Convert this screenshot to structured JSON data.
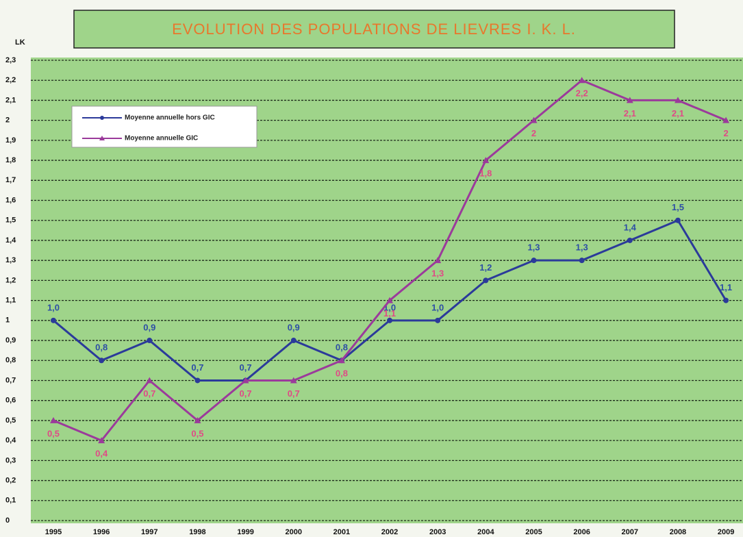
{
  "chart_data": {
    "type": "line",
    "title": "EVOLUTION DES POPULATIONS DE LIEVRES I. K. L.",
    "y_label": "LK",
    "categories": [
      "1995",
      "1996",
      "1997",
      "1998",
      "1999",
      "2000",
      "2001",
      "2002",
      "2003",
      "2004",
      "2005",
      "2006",
      "2007",
      "2008",
      "2009"
    ],
    "series": [
      {
        "name": "Moyenne annuelle hors GIC",
        "color": "#2b3a9a",
        "values": [
          1.0,
          0.8,
          0.9,
          0.7,
          0.7,
          0.9,
          0.8,
          1.0,
          1.0,
          1.2,
          1.3,
          1.3,
          1.4,
          1.5,
          1.1
        ],
        "value_labels": [
          "1,0",
          "0,8",
          "0,9",
          "0,7",
          "0,7",
          "0,9",
          "0,8",
          "1,0",
          "1,0",
          "1,2",
          "1,3",
          "1,3",
          "1,4",
          "1,5",
          "1,1"
        ]
      },
      {
        "name": "Moyenne annuelle  GIC",
        "color": "#9b3a9b",
        "values": [
          0.5,
          0.4,
          0.7,
          0.5,
          0.7,
          0.7,
          0.8,
          1.1,
          1.3,
          1.8,
          2.0,
          2.2,
          2.1,
          2.1,
          2.0
        ],
        "value_labels": [
          "0,5",
          "0,4",
          "0,7",
          "0,5",
          "0,7",
          "0,7",
          "0,8",
          "1,1",
          "1,3",
          "1,8",
          "2",
          "2,2",
          "2,1",
          "2,1",
          "2"
        ]
      }
    ],
    "ylim": [
      0,
      2.3
    ],
    "yticks": [
      0,
      {
        "value": 0.1,
        "label": "0,1"
      },
      {
        "value": 0.2,
        "label": "0,2"
      },
      {
        "value": 0.3,
        "label": "0,3"
      },
      {
        "value": 0.4,
        "label": "0,4"
      },
      {
        "value": 0.5,
        "label": "0,5"
      },
      {
        "value": 0.6,
        "label": "0,6"
      },
      {
        "value": 0.7,
        "label": "0,7"
      },
      {
        "value": 0.8,
        "label": "0,8"
      },
      {
        "value": 0.9,
        "label": "0,9"
      },
      1,
      {
        "value": 1.1,
        "label": "1,1"
      },
      {
        "value": 1.2,
        "label": "1,2"
      },
      {
        "value": 1.3,
        "label": "1,3"
      },
      {
        "value": 1.4,
        "label": "1,4"
      },
      {
        "value": 1.5,
        "label": "1,5"
      },
      {
        "value": 1.6,
        "label": "1,6"
      },
      {
        "value": 1.7,
        "label": "1,7"
      },
      {
        "value": 1.8,
        "label": "1,8"
      },
      {
        "value": 1.9,
        "label": "1,9"
      },
      2,
      {
        "value": 2.1,
        "label": "2,1"
      },
      {
        "value": 2.2,
        "label": "2,2"
      },
      {
        "value": 2.3,
        "label": "2,3"
      }
    ],
    "grid": true
  }
}
